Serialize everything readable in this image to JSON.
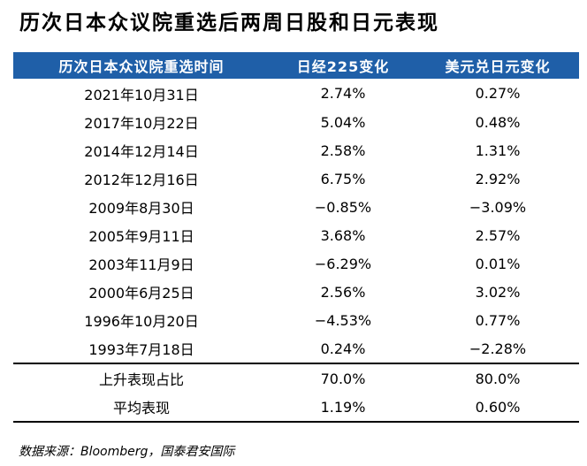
{
  "title": "历次日本众议院重选后两周日股和日元表现",
  "table": {
    "headers": [
      "历次日本众议院重选时间",
      "日经225变化",
      "美元兑日元变化"
    ],
    "rows": [
      {
        "date": "2021年10月31日",
        "nikkei": "2.74%",
        "usdjpy": "0.27%"
      },
      {
        "date": "2017年10月22日",
        "nikkei": "5.04%",
        "usdjpy": "0.48%"
      },
      {
        "date": "2014年12月14日",
        "nikkei": "2.58%",
        "usdjpy": "1.31%"
      },
      {
        "date": "2012年12月16日",
        "nikkei": "6.75%",
        "usdjpy": "2.92%"
      },
      {
        "date": "2009年8月30日",
        "nikkei": "−0.85%",
        "usdjpy": "−3.09%"
      },
      {
        "date": "2005年9月11日",
        "nikkei": "3.68%",
        "usdjpy": "2.57%"
      },
      {
        "date": "2003年11月9日",
        "nikkei": "−6.29%",
        "usdjpy": "0.01%"
      },
      {
        "date": "2000年6月25日",
        "nikkei": "2.56%",
        "usdjpy": "3.02%"
      },
      {
        "date": "1996年10月20日",
        "nikkei": "−4.53%",
        "usdjpy": "0.77%"
      },
      {
        "date": "1993年7月18日",
        "nikkei": "0.24%",
        "usdjpy": "−2.28%"
      }
    ],
    "summary": [
      {
        "label": "上升表现占比",
        "nikkei": "70.0%",
        "usdjpy": "80.0%"
      },
      {
        "label": "平均表现",
        "nikkei": "1.19%",
        "usdjpy": "0.60%"
      }
    ]
  },
  "source": "数据来源：Bloomberg，国泰君安国际",
  "colors": {
    "header_bg": "#1f5fa8",
    "header_text": "#ffffff"
  }
}
